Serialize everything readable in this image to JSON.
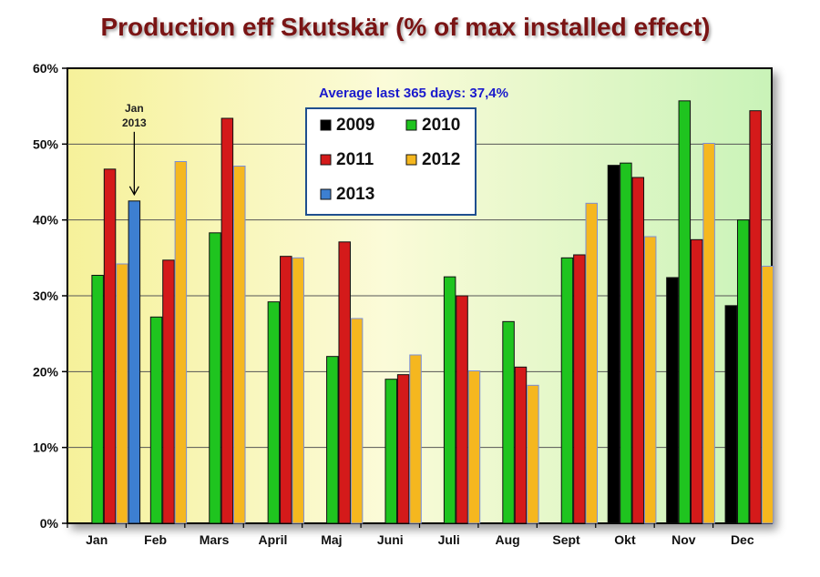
{
  "chart_data": {
    "type": "bar",
    "title": "Production eff Skutskär (% of max installed effect)",
    "note": "Average last 365 days:  37,4%",
    "annotation": {
      "line1": "Jan",
      "line2": "2013",
      "category": "Jan",
      "series": "2013"
    },
    "categories": [
      "Jan",
      "Feb",
      "Mars",
      "April",
      "Maj",
      "Juni",
      "Juli",
      "Aug",
      "Sept",
      "Okt",
      "Nov",
      "Dec"
    ],
    "ylim": [
      0,
      60
    ],
    "yticks": [
      0,
      10,
      20,
      30,
      40,
      50,
      60
    ],
    "ytick_labels": [
      "0%",
      "10%",
      "20%",
      "30%",
      "40%",
      "50%",
      "60%"
    ],
    "grid": true,
    "legend_position": "top-center",
    "series": [
      {
        "name": "2009",
        "color": "#000000",
        "values": [
          null,
          null,
          null,
          null,
          null,
          null,
          null,
          null,
          null,
          47.2,
          32.4,
          28.7
        ]
      },
      {
        "name": "2010",
        "color": "#1fc41f",
        "values": [
          32.7,
          27.2,
          38.3,
          29.2,
          22.0,
          19.0,
          32.5,
          26.6,
          35.0,
          47.5,
          55.7,
          40.0
        ]
      },
      {
        "name": "2011",
        "color": "#d41a1a",
        "values": [
          46.7,
          34.7,
          53.4,
          35.2,
          37.1,
          19.6,
          30.0,
          20.6,
          35.4,
          45.6,
          37.4,
          54.4
        ]
      },
      {
        "name": "2012",
        "color": "#f5b71f",
        "values": [
          34.2,
          47.7,
          47.1,
          35.0,
          27.0,
          22.2,
          20.1,
          18.2,
          42.2,
          37.8,
          50.1,
          33.9
        ]
      },
      {
        "name": "2013",
        "color": "#3d7fd1",
        "values": [
          42.5,
          null,
          null,
          null,
          null,
          null,
          null,
          null,
          null,
          null,
          null,
          null
        ]
      }
    ]
  }
}
